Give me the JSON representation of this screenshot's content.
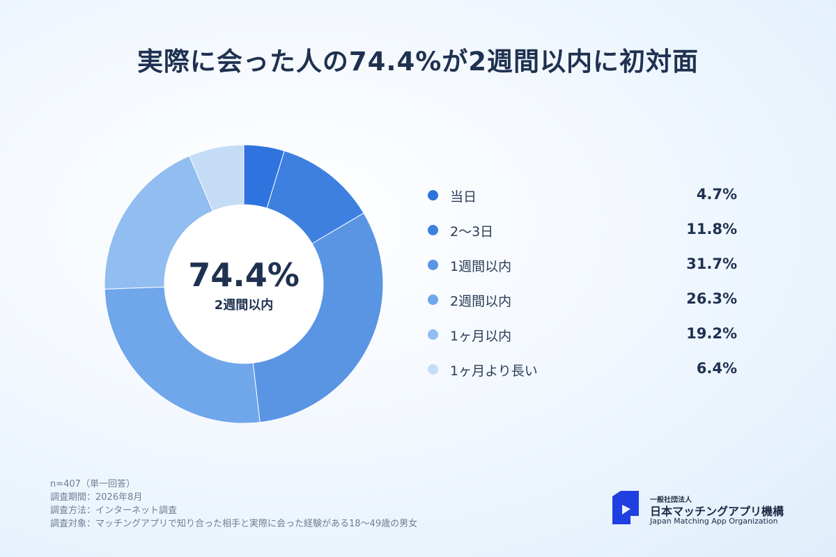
{
  "title": "実際に会った人の74.4%が2週間以内に初対面",
  "center": {
    "value": "74.4%",
    "label": "2週間以内"
  },
  "chart_data": {
    "type": "pie",
    "title": "実際に会った人の74.4%が2週間以内に初対面",
    "categories": [
      "当日",
      "2〜3日",
      "1週間以内",
      "2週間以内",
      "1ヶ月以内",
      "1ヶ月より長い"
    ],
    "values": [
      4.7,
      11.8,
      31.7,
      26.3,
      19.2,
      6.4
    ],
    "value_labels": [
      "4.7%",
      "11.8%",
      "31.7%",
      "26.3%",
      "19.2%",
      "6.4%"
    ],
    "colors": [
      "#2f73de",
      "#3d80e0",
      "#5a95e4",
      "#70a6ea",
      "#92bdf0",
      "#c5dcf6"
    ],
    "legend_position": "right",
    "donut": true
  },
  "notes": [
    "n=407（単一回答）",
    "調査期間：2026年8月",
    "調査方法：インターネット調査",
    "調査対象：マッチングアプリで知り合った相手と実際に会った経験がある18〜49歳の男女"
  ],
  "logo": {
    "small": "一般社団法人",
    "main": "日本マッチングアプリ機構",
    "english": "Japan Matching App Organization",
    "color": "#1f3fe0",
    "icon": "organization-logo-icon"
  }
}
